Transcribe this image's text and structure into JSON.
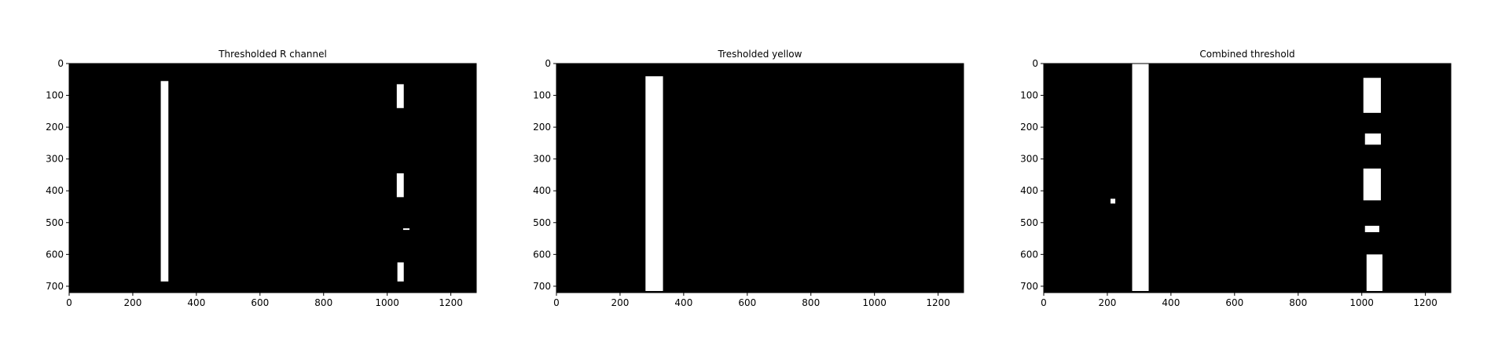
{
  "chart_data": [
    {
      "type": "image",
      "title": "Thresholded R channel",
      "xlim": [
        0,
        1280
      ],
      "ylim": [
        720,
        0
      ],
      "xticks": [
        0,
        200,
        400,
        600,
        800,
        1000,
        1200
      ],
      "yticks": [
        0,
        100,
        200,
        300,
        400,
        500,
        600,
        700
      ],
      "background": "#000000",
      "foreground": "#ffffff",
      "regions": [
        {
          "x0": 288,
          "x1": 312,
          "y0": 55,
          "y1": 685
        },
        {
          "x0": 1030,
          "x1": 1052,
          "y0": 65,
          "y1": 140
        },
        {
          "x0": 1030,
          "x1": 1052,
          "y0": 345,
          "y1": 420
        },
        {
          "x0": 1050,
          "x1": 1070,
          "y0": 518,
          "y1": 523
        },
        {
          "x0": 1032,
          "x1": 1052,
          "y0": 625,
          "y1": 685
        }
      ]
    },
    {
      "type": "image",
      "title": "Tresholded yellow",
      "xlim": [
        0,
        1280
      ],
      "ylim": [
        720,
        0
      ],
      "xticks": [
        0,
        200,
        400,
        600,
        800,
        1000,
        1200
      ],
      "yticks": [
        0,
        100,
        200,
        300,
        400,
        500,
        600,
        700
      ],
      "background": "#000000",
      "foreground": "#ffffff",
      "regions": [
        {
          "x0": 280,
          "x1": 335,
          "y0": 40,
          "y1": 715
        },
        {
          "x0": 320,
          "x1": 330,
          "y0": 120,
          "y1": 135
        }
      ]
    },
    {
      "type": "image",
      "title": "Combined threshold",
      "xlim": [
        0,
        1280
      ],
      "ylim": [
        720,
        0
      ],
      "xticks": [
        0,
        200,
        400,
        600,
        800,
        1000,
        1200
      ],
      "yticks": [
        0,
        100,
        200,
        300,
        400,
        500,
        600,
        700
      ],
      "background": "#000000",
      "foreground": "#ffffff",
      "regions": [
        {
          "x0": 278,
          "x1": 330,
          "y0": 0,
          "y1": 715
        },
        {
          "x0": 1005,
          "x1": 1060,
          "y0": 45,
          "y1": 155
        },
        {
          "x0": 1010,
          "x1": 1060,
          "y0": 220,
          "y1": 255
        },
        {
          "x0": 1005,
          "x1": 1060,
          "y0": 330,
          "y1": 430
        },
        {
          "x0": 1010,
          "x1": 1055,
          "y0": 510,
          "y1": 530
        },
        {
          "x0": 1015,
          "x1": 1065,
          "y0": 600,
          "y1": 715
        },
        {
          "x0": 210,
          "x1": 225,
          "y0": 425,
          "y1": 440
        }
      ]
    }
  ]
}
